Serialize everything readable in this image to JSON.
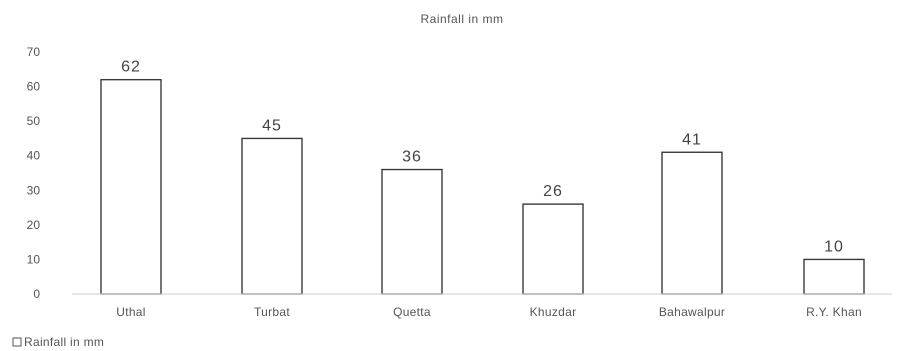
{
  "chart_data": {
    "type": "bar",
    "title": "Rainfall in mm",
    "categories": [
      "Uthal",
      "Turbat",
      "Quetta",
      "Khuzdar",
      "Bahawalpur",
      "R.Y. Khan"
    ],
    "series": [
      {
        "name": "Rainfall in mm",
        "values": [
          62,
          45,
          36,
          26,
          41,
          10
        ]
      }
    ],
    "xlabel": "",
    "ylabel": "",
    "ylim": [
      0,
      70
    ],
    "yticks": [
      0,
      10,
      20,
      30,
      40,
      50,
      60,
      70
    ],
    "grid": false,
    "legend": {
      "position": "bottom-left",
      "entries": [
        "Rainfall in mm"
      ]
    },
    "colors": {
      "bar_fill": "#ffffff",
      "bar_stroke": "#3a3a3a",
      "text": "#555555"
    }
  }
}
